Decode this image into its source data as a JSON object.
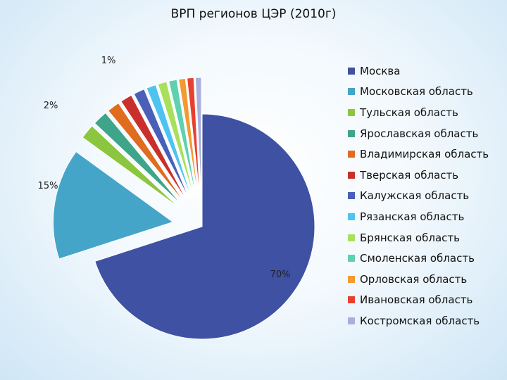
{
  "chart_data": {
    "type": "pie",
    "title": "ВРП регионов ЦЭР (2010г)",
    "series": [
      {
        "name": "Москва",
        "value": 70,
        "label": "70%",
        "color": "#3f51a3"
      },
      {
        "name": "Московская область",
        "value": 15,
        "label": "15%",
        "color": "#45a5c9"
      },
      {
        "name": "Тульская область",
        "value": 2,
        "label": "2%",
        "color": "#8cc63f"
      },
      {
        "name": "Ярославская область",
        "value": 2,
        "label": "",
        "color": "#3fa58a"
      },
      {
        "name": "Владимирская область",
        "value": 1.7,
        "label": "",
        "color": "#e06c1f"
      },
      {
        "name": "Тверская область",
        "value": 1.6,
        "label": "",
        "color": "#c9302c"
      },
      {
        "name": "Калужская область",
        "value": 1.5,
        "label": "",
        "color": "#4a5fb8"
      },
      {
        "name": "Рязанская область",
        "value": 1.3,
        "label": "",
        "color": "#4fc3ef"
      },
      {
        "name": "Брянская область",
        "value": 1.2,
        "label": "",
        "color": "#a8e05c"
      },
      {
        "name": "Смоленская область",
        "value": 1.1,
        "label": "",
        "color": "#5fd0b0"
      },
      {
        "name": "Орловская область",
        "value": 0.9,
        "label": "",
        "color": "#f39a32"
      },
      {
        "name": "Ивановская область",
        "value": 0.9,
        "label": "1%",
        "color": "#e8402e"
      },
      {
        "name": "Костромская область",
        "value": 0.8,
        "label": "",
        "color": "#a9aedd"
      }
    ],
    "legend_position": "right"
  }
}
